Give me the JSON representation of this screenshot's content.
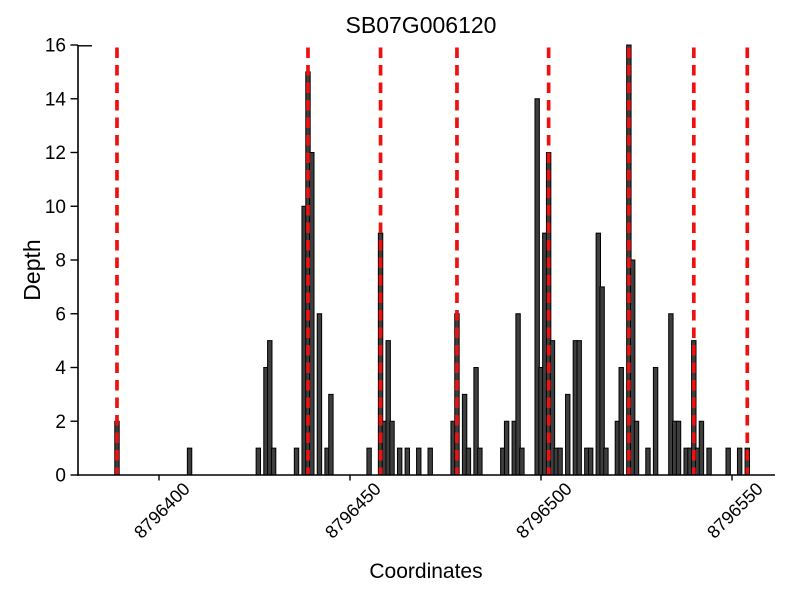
{
  "title": "SB07G006120",
  "colors": {
    "bar_fill": "#3e3e3e",
    "bar_stroke": "#000000",
    "highlight_line_red": "#ee1111",
    "axis_color": "#000000",
    "background": "#ffffff"
  },
  "chart_data": {
    "type": "bar",
    "title": "SB07G006120",
    "xlabel": "Coordinates",
    "ylabel": "Depth",
    "xlim": [
      8796379,
      8796561
    ],
    "ylim": [
      0,
      16
    ],
    "grid": false,
    "legend": false,
    "x_ticks": [
      8796400,
      8796450,
      8796500,
      8796550
    ],
    "y_ticks": [
      0,
      2,
      4,
      6,
      8,
      10,
      12,
      14,
      16
    ],
    "x_tick_rotation_deg": -45,
    "bar_unit_width": 1,
    "points_format": [
      "coordinate",
      "depth"
    ],
    "points": [
      [
        8796389,
        2
      ],
      [
        8796408,
        1
      ],
      [
        8796426,
        1
      ],
      [
        8796428,
        4
      ],
      [
        8796429,
        5
      ],
      [
        8796430,
        1
      ],
      [
        8796436,
        1
      ],
      [
        8796438,
        10
      ],
      [
        8796439,
        15
      ],
      [
        8796440,
        12
      ],
      [
        8796442,
        6
      ],
      [
        8796444,
        1
      ],
      [
        8796445,
        3
      ],
      [
        8796455,
        1
      ],
      [
        8796458,
        9
      ],
      [
        8796459,
        2
      ],
      [
        8796460,
        5
      ],
      [
        8796461,
        2
      ],
      [
        8796463,
        1
      ],
      [
        8796465,
        1
      ],
      [
        8796468,
        1
      ],
      [
        8796471,
        1
      ],
      [
        8796477,
        2
      ],
      [
        8796478,
        6
      ],
      [
        8796480,
        3
      ],
      [
        8796481,
        1
      ],
      [
        8796483,
        4
      ],
      [
        8796484,
        1
      ],
      [
        8796490,
        1
      ],
      [
        8796491,
        2
      ],
      [
        8796493,
        2
      ],
      [
        8796494,
        6
      ],
      [
        8796495,
        1
      ],
      [
        8796499,
        14
      ],
      [
        8796500,
        4
      ],
      [
        8796501,
        9
      ],
      [
        8796502,
        12
      ],
      [
        8796503,
        5
      ],
      [
        8796504,
        1
      ],
      [
        8796505,
        1
      ],
      [
        8796507,
        3
      ],
      [
        8796509,
        5
      ],
      [
        8796510,
        5
      ],
      [
        8796512,
        1
      ],
      [
        8796513,
        1
      ],
      [
        8796515,
        9
      ],
      [
        8796516,
        7
      ],
      [
        8796517,
        1
      ],
      [
        8796520,
        2
      ],
      [
        8796521,
        4
      ],
      [
        8796523,
        16
      ],
      [
        8796524,
        8
      ],
      [
        8796525,
        2
      ],
      [
        8796528,
        1
      ],
      [
        8796530,
        4
      ],
      [
        8796534,
        6
      ],
      [
        8796535,
        2
      ],
      [
        8796536,
        2
      ],
      [
        8796538,
        1
      ],
      [
        8796539,
        1
      ],
      [
        8796540,
        5
      ],
      [
        8796541,
        1
      ],
      [
        8796542,
        2
      ],
      [
        8796544,
        1
      ],
      [
        8796549,
        1
      ],
      [
        8796552,
        1
      ],
      [
        8796554,
        1
      ]
    ],
    "highlight_lines_x": [
      8796389,
      8796439,
      8796458,
      8796478,
      8796502,
      8796523,
      8796540,
      8796554
    ],
    "highlight_line_style": "red dashed vertical"
  }
}
